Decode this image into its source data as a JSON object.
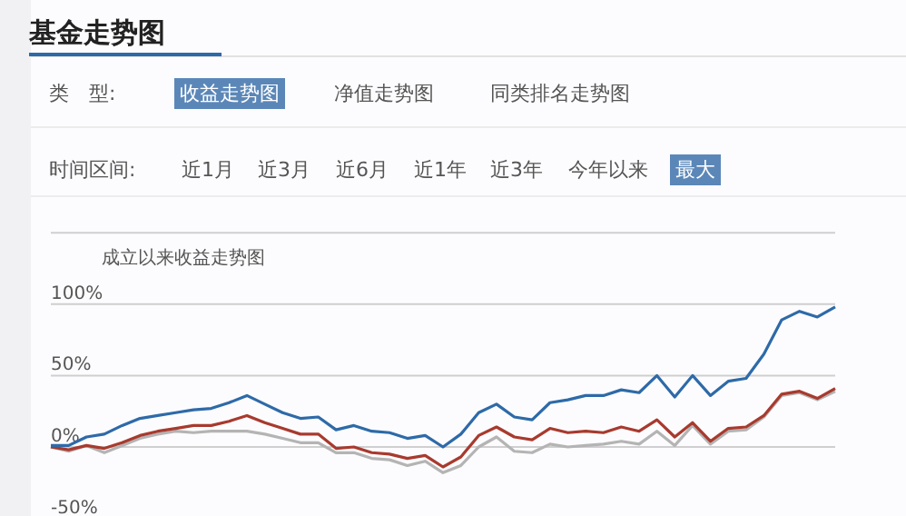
{
  "chart_data": {
    "type": "line",
    "title": "基金走势图",
    "subtitle": "成立以来收益走势图",
    "annotations": [
      "类　型:",
      "收益走势图",
      "净值走势图",
      "同类排名走势图",
      "时间区间:",
      "近1月",
      "近3月",
      "近6月",
      "近1年",
      "近3年",
      "今年以来",
      "最大"
    ],
    "categories": [
      null,
      null,
      null,
      null,
      null,
      null,
      null,
      null,
      null,
      null,
      null,
      null,
      null,
      null,
      null,
      null,
      null,
      null,
      null,
      null,
      null,
      null,
      null,
      null,
      null,
      null,
      null,
      null,
      null,
      null,
      null,
      null,
      null,
      null,
      null,
      null,
      null,
      null,
      null,
      null,
      null,
      null,
      null,
      null,
      null
    ],
    "series": [
      {
        "color": "#2e6aa8",
        "values": [
          1,
          1,
          7,
          9,
          15,
          20,
          22,
          24,
          26,
          27,
          31,
          36,
          30,
          24,
          20,
          21,
          12,
          15,
          11,
          10,
          6,
          8,
          0,
          9,
          24,
          30,
          21,
          19,
          31,
          33,
          36,
          36,
          40,
          38,
          50,
          35,
          50,
          36,
          46,
          48,
          65,
          89,
          95,
          91,
          98
        ]
      },
      {
        "color": "#a83a2e",
        "values": [
          0,
          -2,
          1,
          -1,
          3,
          8,
          11,
          13,
          15,
          15,
          18,
          22,
          17,
          13,
          9,
          9,
          -1,
          0,
          -4,
          -5,
          -8,
          -6,
          -14,
          -7,
          8,
          14,
          7,
          5,
          13,
          10,
          11,
          10,
          14,
          11,
          19,
          7,
          17,
          4,
          13,
          14,
          22,
          37,
          39,
          34,
          41
        ]
      },
      {
        "color": "#b4b4b4",
        "values": [
          0,
          -3,
          1,
          -4,
          1,
          6,
          9,
          11,
          10,
          11,
          11,
          11,
          9,
          6,
          3,
          3,
          -4,
          -4,
          -8,
          -9,
          -13,
          -10,
          -18,
          -13,
          0,
          7,
          -3,
          -4,
          2,
          0,
          1,
          2,
          4,
          2,
          11,
          1,
          15,
          2,
          11,
          12,
          21,
          36,
          38,
          33,
          39
        ]
      }
    ],
    "ylim": [
      -50,
      150
    ],
    "yticks": [
      {
        "value": -50,
        "label": "-50%"
      },
      {
        "value": 0,
        "label": "0%"
      },
      {
        "value": 50,
        "label": "50%"
      },
      {
        "value": 100,
        "label": "100%"
      },
      {
        "value": 150,
        "label": null
      }
    ],
    "grid": "y",
    "marker": "none",
    "line_style": "solid"
  }
}
